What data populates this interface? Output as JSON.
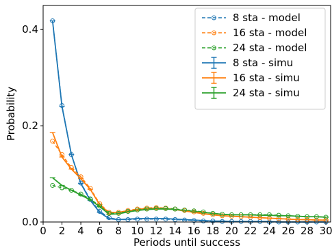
{
  "chart_data": {
    "type": "line",
    "title": "",
    "xlabel": "Periods until success",
    "ylabel": "Probability",
    "xlim": [
      0,
      30.5
    ],
    "ylim": [
      0,
      0.45
    ],
    "x_ticks": [
      0,
      2,
      4,
      6,
      8,
      10,
      12,
      14,
      16,
      18,
      20,
      22,
      24,
      26,
      28,
      30
    ],
    "x_tick_labels": [
      "0",
      "2",
      "4",
      "6",
      "8",
      "10",
      "12",
      "14",
      "16",
      "18",
      "20",
      "22",
      "24",
      "26",
      "28",
      "30"
    ],
    "y_ticks": [
      0,
      0.2,
      0.4
    ],
    "y_tick_labels": [
      "0.0",
      "0.2",
      "0.4"
    ],
    "grid": false,
    "legend_position": "top-right",
    "x": [
      1,
      2,
      3,
      4,
      5,
      6,
      7,
      8,
      9,
      10,
      11,
      12,
      13,
      14,
      15,
      16,
      17,
      18,
      19,
      20,
      21,
      22,
      23,
      24,
      25,
      26,
      27,
      28,
      29,
      30
    ],
    "series": [
      {
        "name": "8 sta - model",
        "kind": "model",
        "color": "#1f77b4",
        "values": [
          0.418,
          0.242,
          0.14,
          0.081,
          0.047,
          0.022,
          0.009,
          0.005,
          0.005,
          0.006,
          0.006,
          0.006,
          0.006,
          0.005,
          0.004,
          0.003,
          0.002,
          0.002,
          0.001,
          0.001,
          0.001,
          0.001,
          0.001,
          0.0,
          0.0,
          0.0,
          0.0,
          0.0,
          0.0,
          0.0
        ]
      },
      {
        "name": "16 sta - model",
        "kind": "model",
        "color": "#ff7f0e",
        "values": [
          0.168,
          0.14,
          0.113,
          0.094,
          0.07,
          0.038,
          0.02,
          0.02,
          0.024,
          0.027,
          0.029,
          0.03,
          0.029,
          0.027,
          0.024,
          0.021,
          0.018,
          0.015,
          0.013,
          0.012,
          0.011,
          0.01,
          0.009,
          0.008,
          0.007,
          0.006,
          0.005,
          0.005,
          0.004,
          0.004
        ]
      },
      {
        "name": "24 sta - model",
        "kind": "model",
        "color": "#2ca02c",
        "values": [
          0.076,
          0.071,
          0.066,
          0.058,
          0.048,
          0.033,
          0.018,
          0.018,
          0.022,
          0.025,
          0.027,
          0.028,
          0.028,
          0.027,
          0.025,
          0.023,
          0.021,
          0.018,
          0.016,
          0.015,
          0.015,
          0.015,
          0.015,
          0.015,
          0.014,
          0.013,
          0.012,
          0.011,
          0.011,
          0.01
        ]
      },
      {
        "name": "8 sta - simu",
        "kind": "simu",
        "color": "#1f77b4",
        "values": [
          0.418,
          0.24,
          0.14,
          0.08,
          0.045,
          0.02,
          0.007,
          0.005,
          0.006,
          0.007,
          0.007,
          0.007,
          0.007,
          0.006,
          0.005,
          0.004,
          0.003,
          0.002,
          0.002,
          0.001,
          0.001,
          0.001,
          0.001,
          0.001,
          0.0,
          0.0,
          0.0,
          0.0,
          0.0,
          0.0
        ]
      },
      {
        "name": "16 sta - simu",
        "kind": "simu",
        "color": "#ff7f0e",
        "values": [
          0.186,
          0.135,
          0.11,
          0.09,
          0.068,
          0.036,
          0.019,
          0.02,
          0.023,
          0.026,
          0.028,
          0.029,
          0.028,
          0.026,
          0.023,
          0.02,
          0.017,
          0.015,
          0.013,
          0.012,
          0.011,
          0.01,
          0.009,
          0.008,
          0.007,
          0.006,
          0.005,
          0.005,
          0.004,
          0.004
        ]
      },
      {
        "name": "24 sta - simu",
        "kind": "simu",
        "color": "#2ca02c",
        "values": [
          0.092,
          0.076,
          0.066,
          0.056,
          0.046,
          0.032,
          0.016,
          0.017,
          0.021,
          0.024,
          0.026,
          0.027,
          0.027,
          0.026,
          0.024,
          0.022,
          0.02,
          0.018,
          0.016,
          0.015,
          0.015,
          0.015,
          0.014,
          0.014,
          0.013,
          0.013,
          0.012,
          0.011,
          0.011,
          0.01
        ]
      }
    ]
  }
}
